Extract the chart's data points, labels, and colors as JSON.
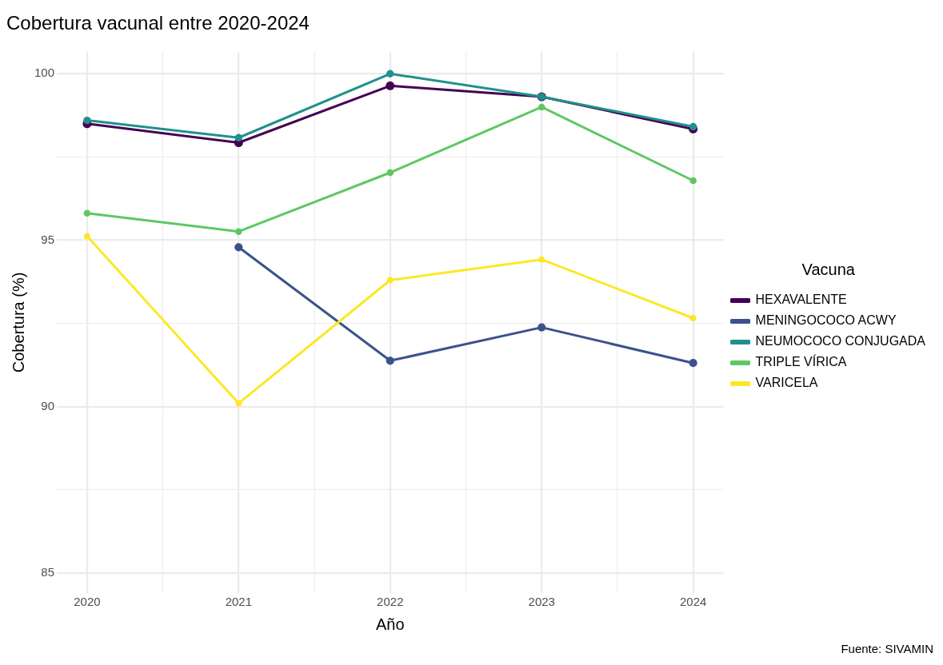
{
  "chart_data": {
    "type": "line",
    "title": "Cobertura vacunal entre 2020-2024",
    "xlabel": "Año",
    "ylabel": "Cobertura (%)",
    "legend_title": "Vacuna",
    "annotations": [
      "Fuente: SIVAMIN"
    ],
    "x": [
      2020,
      2021,
      2022,
      2023,
      2024
    ],
    "series": [
      {
        "name": "HEXAVALENTE",
        "color": "#440154",
        "values": [
          98.5,
          97.93,
          99.64,
          99.31,
          98.34
        ]
      },
      {
        "name": "MENINGOCOCO ACWY",
        "color": "#3b528b",
        "values": [
          null,
          94.79,
          91.38,
          92.38,
          91.31
        ]
      },
      {
        "name": "NEUMOCOCO CONJUGADA",
        "color": "#21908c",
        "values": [
          98.6,
          98.08,
          100,
          99.31,
          98.41
        ]
      },
      {
        "name": "TRIPLE VÍRICA",
        "color": "#5dc863",
        "values": [
          95.81,
          95.26,
          97.03,
          99.0,
          96.79
        ]
      },
      {
        "name": "VARICELA",
        "color": "#fde725",
        "values": [
          95.12,
          90.1,
          93.8,
          94.42,
          92.66
        ]
      }
    ],
    "xlim": [
      2019.8,
      2024.2
    ],
    "ylim": [
      84.4,
      100.66
    ],
    "xticks": [
      2020,
      {
        "value": 2020.5,
        "label": null
      },
      2021,
      {
        "value": 2021.5,
        "label": null
      },
      2022,
      {
        "value": 2022.5,
        "label": null
      },
      2023,
      {
        "value": 2023.5,
        "label": null
      },
      2024
    ],
    "yticks": [
      85,
      {
        "value": 87.5,
        "label": null
      },
      90,
      {
        "value": 92.5,
        "label": null
      },
      95,
      {
        "value": 97.5,
        "label": null
      },
      100
    ],
    "grid": true,
    "legend": "right",
    "marker": "circle",
    "line_style": "solid"
  }
}
